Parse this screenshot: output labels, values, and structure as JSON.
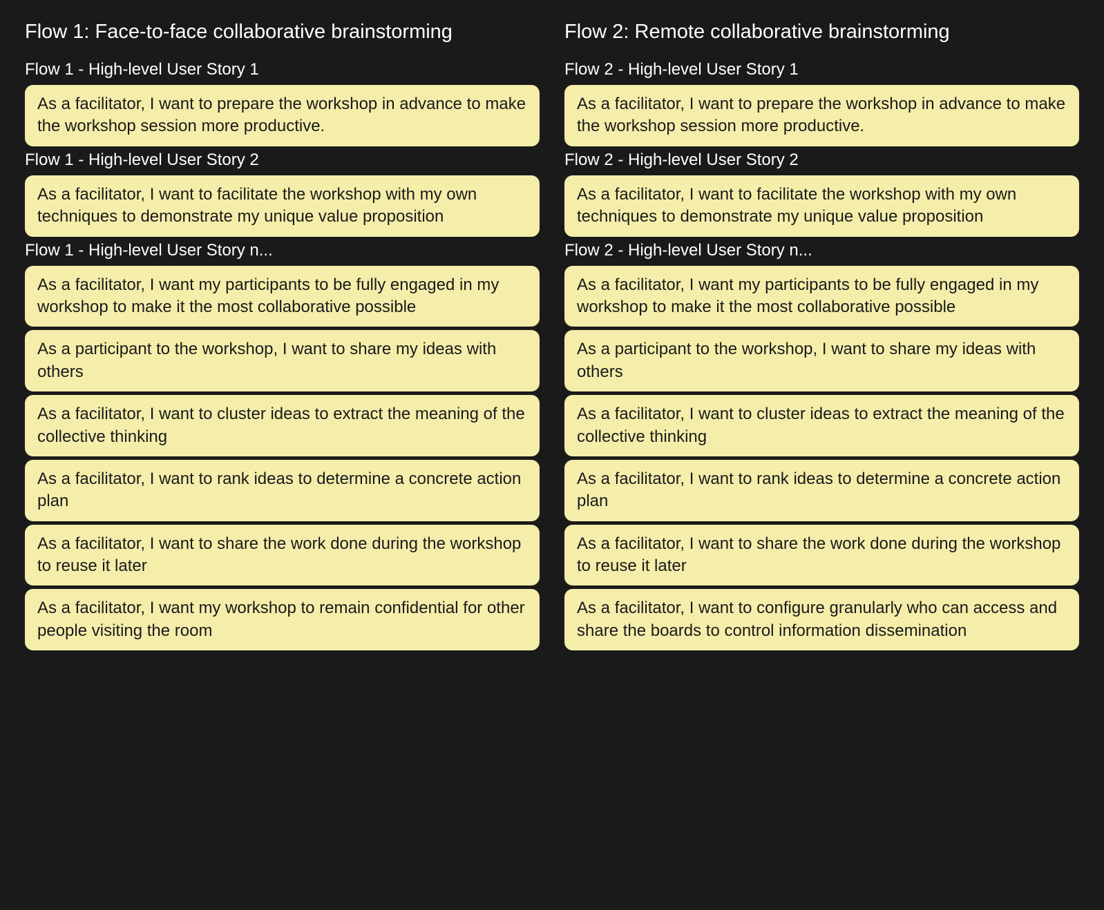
{
  "layout": {
    "background_color": "#1a1a1a",
    "card_color": "#f5eeab",
    "text_color_light": "#ffffff",
    "text_color_dark": "#1a1a1a",
    "card_border_radius": 12,
    "title_fontsize": 29,
    "label_fontsize": 24,
    "card_fontsize": 24,
    "columns": 2,
    "gap": 36
  },
  "flows": [
    {
      "title": "Flow 1: Face-to-face collaborative brainstorming",
      "sections": [
        {
          "label": "Flow 1 - High-level User Story 1",
          "cards": [
            "As a facilitator, I want to prepare the workshop in advance to make the workshop session more productive."
          ]
        },
        {
          "label": "Flow 1 - High-level User Story 2",
          "cards": [
            "As a facilitator, I want to facilitate the workshop with my own techniques to demonstrate my unique value proposition"
          ]
        },
        {
          "label": "Flow 1 - High-level User Story n...",
          "cards": [
            "As a facilitator, I want my participants to be fully engaged in my workshop to make it the most collaborative possible",
            "As a participant to the workshop, I want to share my ideas with others",
            "As a facilitator, I want to cluster ideas to extract the meaning of the collective thinking",
            "As a facilitator, I want to rank ideas to determine a concrete action plan",
            "As a facilitator, I want to share the work done during the workshop to reuse it later",
            "As a facilitator, I want my workshop to remain confidential for other people visiting the room"
          ]
        }
      ]
    },
    {
      "title": "Flow 2: Remote collaborative brainstorming",
      "sections": [
        {
          "label": "Flow 2 - High-level User Story 1",
          "cards": [
            "As a facilitator, I want to prepare the workshop in advance to make the workshop session more productive."
          ]
        },
        {
          "label": "Flow 2 - High-level User Story 2",
          "cards": [
            "As a facilitator, I want to facilitate the workshop with my own techniques to demonstrate my unique value proposition"
          ]
        },
        {
          "label": "Flow 2 - High-level User Story n...",
          "cards": [
            "As a facilitator, I want my participants to be fully engaged in my workshop to make it the most collaborative possible",
            "As a participant to the workshop, I want to share my ideas with others",
            "As a facilitator, I want to cluster ideas to extract the meaning of the collective thinking",
            "As a facilitator, I want to rank ideas to determine a concrete action plan",
            "As a facilitator, I want to share the work done during the workshop to reuse it later",
            "As a facilitator, I want to configure granularly who can access and share the boards to control information dissemination"
          ]
        }
      ]
    }
  ]
}
